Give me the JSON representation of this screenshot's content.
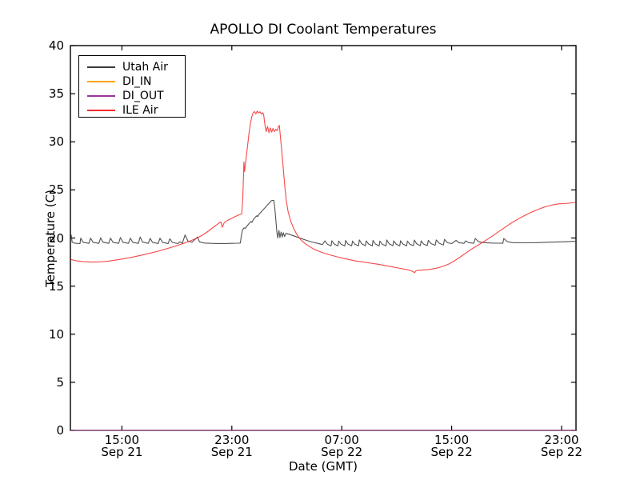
{
  "figure": {
    "background": "#ffffff",
    "spine_color": "#000000"
  },
  "chart_data": {
    "type": "line",
    "title": "APOLLO DI Coolant Temperatures",
    "xlabel": "Date (GMT)",
    "ylabel": "Temperature (C)",
    "x_unit": "hours since Sep 21 00:00 GMT",
    "xlim": [
      11.25,
      48.05
    ],
    "ylim": [
      0,
      40
    ],
    "grid": false,
    "y_ticks": [
      0,
      5,
      10,
      15,
      20,
      25,
      30,
      35,
      40
    ],
    "x_ticks": [
      {
        "t": 15,
        "time": "15:00",
        "date": "Sep 21"
      },
      {
        "t": 23,
        "time": "23:00",
        "date": "Sep 21"
      },
      {
        "t": 31,
        "time": "07:00",
        "date": "Sep 22"
      },
      {
        "t": 39,
        "time": "15:00",
        "date": "Sep 22"
      },
      {
        "t": 47,
        "time": "23:00",
        "date": "Sep 22"
      }
    ],
    "legend": {
      "position": "upper-left",
      "entries": [
        "Utah Air",
        "DI_IN",
        "DI_OUT",
        "ILE Air"
      ]
    },
    "series": [
      {
        "name": "Utah Air",
        "color": "#3a3a3a",
        "points": [
          [
            11.31,
            20.35
          ],
          [
            11.38,
            19.55
          ],
          [
            11.6,
            19.45
          ],
          [
            11.95,
            19.42
          ],
          [
            12.0,
            19.98
          ],
          [
            12.18,
            19.55
          ],
          [
            12.6,
            19.44
          ],
          [
            12.72,
            19.98
          ],
          [
            12.9,
            19.55
          ],
          [
            13.32,
            19.44
          ],
          [
            13.45,
            20.02
          ],
          [
            13.62,
            19.56
          ],
          [
            14.04,
            19.44
          ],
          [
            14.17,
            19.98
          ],
          [
            14.35,
            19.55
          ],
          [
            14.76,
            19.44
          ],
          [
            14.89,
            20.05
          ],
          [
            15.07,
            19.56
          ],
          [
            15.48,
            19.44
          ],
          [
            15.61,
            19.98
          ],
          [
            15.79,
            19.55
          ],
          [
            16.2,
            19.44
          ],
          [
            16.33,
            20.1
          ],
          [
            16.51,
            19.57
          ],
          [
            16.92,
            19.44
          ],
          [
            17.05,
            19.97
          ],
          [
            17.23,
            19.55
          ],
          [
            17.64,
            19.43
          ],
          [
            17.77,
            19.98
          ],
          [
            17.95,
            19.55
          ],
          [
            18.36,
            19.43
          ],
          [
            18.49,
            19.92
          ],
          [
            18.67,
            19.54
          ],
          [
            19.08,
            19.42
          ],
          [
            19.21,
            19.6
          ],
          [
            19.4,
            19.48
          ],
          [
            19.6,
            20.32
          ],
          [
            19.8,
            19.7
          ],
          [
            20.1,
            19.55
          ],
          [
            20.5,
            20.1
          ],
          [
            20.65,
            19.6
          ],
          [
            21.0,
            19.48
          ],
          [
            21.5,
            19.44
          ],
          [
            22.0,
            19.43
          ],
          [
            22.5,
            19.43
          ],
          [
            23.0,
            19.44
          ],
          [
            23.4,
            19.46
          ],
          [
            23.62,
            19.48
          ],
          [
            23.7,
            20.3
          ],
          [
            23.78,
            20.85
          ],
          [
            23.88,
            21.05
          ],
          [
            23.98,
            21.0
          ],
          [
            24.1,
            21.25
          ],
          [
            24.25,
            21.5
          ],
          [
            24.4,
            21.72
          ],
          [
            24.46,
            21.62
          ],
          [
            24.58,
            21.95
          ],
          [
            24.72,
            22.18
          ],
          [
            24.82,
            22.32
          ],
          [
            24.88,
            22.22
          ],
          [
            25.0,
            22.5
          ],
          [
            25.15,
            22.74
          ],
          [
            25.3,
            22.98
          ],
          [
            25.45,
            23.2
          ],
          [
            25.6,
            23.44
          ],
          [
            25.75,
            23.66
          ],
          [
            25.86,
            23.86
          ],
          [
            25.95,
            23.92
          ],
          [
            26.06,
            23.9
          ],
          [
            26.12,
            23.2
          ],
          [
            26.2,
            21.9
          ],
          [
            26.28,
            20.6
          ],
          [
            26.34,
            20.0
          ],
          [
            26.43,
            20.78
          ],
          [
            26.5,
            20.05
          ],
          [
            26.59,
            20.62
          ],
          [
            26.66,
            20.1
          ],
          [
            26.75,
            20.55
          ],
          [
            26.84,
            20.15
          ],
          [
            26.94,
            20.48
          ],
          [
            27.25,
            20.35
          ],
          [
            27.65,
            20.15
          ],
          [
            28.05,
            19.95
          ],
          [
            28.45,
            19.75
          ],
          [
            28.85,
            19.58
          ],
          [
            29.25,
            19.44
          ],
          [
            29.6,
            19.32
          ],
          [
            29.78,
            19.7
          ],
          [
            29.95,
            19.35
          ],
          [
            30.22,
            19.18
          ],
          [
            30.28,
            19.72
          ],
          [
            30.45,
            19.38
          ],
          [
            30.72,
            19.18
          ],
          [
            30.78,
            19.68
          ],
          [
            30.95,
            19.36
          ],
          [
            31.22,
            19.18
          ],
          [
            31.28,
            19.74
          ],
          [
            31.45,
            19.38
          ],
          [
            31.72,
            19.18
          ],
          [
            31.78,
            19.68
          ],
          [
            31.95,
            19.36
          ],
          [
            32.22,
            19.18
          ],
          [
            32.28,
            19.8
          ],
          [
            32.45,
            19.4
          ],
          [
            32.72,
            19.2
          ],
          [
            32.78,
            19.7
          ],
          [
            32.95,
            19.38
          ],
          [
            33.22,
            19.18
          ],
          [
            33.28,
            19.74
          ],
          [
            33.45,
            19.38
          ],
          [
            33.72,
            19.18
          ],
          [
            33.78,
            19.68
          ],
          [
            33.95,
            19.36
          ],
          [
            34.22,
            19.18
          ],
          [
            34.28,
            19.8
          ],
          [
            34.45,
            19.4
          ],
          [
            34.72,
            19.2
          ],
          [
            34.78,
            19.7
          ],
          [
            34.95,
            19.38
          ],
          [
            35.22,
            19.18
          ],
          [
            35.28,
            19.72
          ],
          [
            35.45,
            19.38
          ],
          [
            35.72,
            19.18
          ],
          [
            35.78,
            19.68
          ],
          [
            35.95,
            19.36
          ],
          [
            36.22,
            19.2
          ],
          [
            36.28,
            19.78
          ],
          [
            36.45,
            19.4
          ],
          [
            36.72,
            19.2
          ],
          [
            36.78,
            19.7
          ],
          [
            36.95,
            19.38
          ],
          [
            37.22,
            19.2
          ],
          [
            37.3,
            19.76
          ],
          [
            37.5,
            19.42
          ],
          [
            37.8,
            19.24
          ],
          [
            37.88,
            19.8
          ],
          [
            38.1,
            19.45
          ],
          [
            38.4,
            19.28
          ],
          [
            38.48,
            19.86
          ],
          [
            38.7,
            19.5
          ],
          [
            39.0,
            19.42
          ],
          [
            39.32,
            19.76
          ],
          [
            39.52,
            19.52
          ],
          [
            39.9,
            19.44
          ],
          [
            40.02,
            19.7
          ],
          [
            40.25,
            19.52
          ],
          [
            40.6,
            19.45
          ],
          [
            40.72,
            19.96
          ],
          [
            40.95,
            19.62
          ],
          [
            41.35,
            19.52
          ],
          [
            41.9,
            19.48
          ],
          [
            42.45,
            19.46
          ],
          [
            42.72,
            19.45
          ],
          [
            42.8,
            19.95
          ],
          [
            43.05,
            19.62
          ],
          [
            43.45,
            19.52
          ],
          [
            44.0,
            19.5
          ],
          [
            44.6,
            19.5
          ],
          [
            45.2,
            19.52
          ],
          [
            45.8,
            19.55
          ],
          [
            46.4,
            19.58
          ],
          [
            47.0,
            19.6
          ],
          [
            47.6,
            19.63
          ],
          [
            48.0,
            19.66
          ]
        ]
      },
      {
        "name": "DI_IN",
        "color": "#ffa500",
        "points": [
          [
            11.25,
            0
          ],
          [
            48.05,
            0
          ]
        ]
      },
      {
        "name": "DI_OUT",
        "color": "#993399",
        "points": [
          [
            11.25,
            0
          ],
          [
            48.05,
            0
          ]
        ]
      },
      {
        "name": "ILE Air",
        "color": "#f62d2d",
        "points": [
          [
            11.26,
            17.78
          ],
          [
            11.7,
            17.62
          ],
          [
            12.2,
            17.54
          ],
          [
            12.8,
            17.5
          ],
          [
            13.4,
            17.52
          ],
          [
            14.0,
            17.6
          ],
          [
            14.6,
            17.72
          ],
          [
            15.2,
            17.86
          ],
          [
            15.8,
            18.02
          ],
          [
            16.4,
            18.2
          ],
          [
            17.0,
            18.4
          ],
          [
            17.6,
            18.62
          ],
          [
            18.2,
            18.86
          ],
          [
            18.8,
            19.12
          ],
          [
            19.4,
            19.4
          ],
          [
            19.9,
            19.66
          ],
          [
            20.4,
            19.95
          ],
          [
            20.8,
            20.25
          ],
          [
            21.2,
            20.62
          ],
          [
            21.55,
            21.0
          ],
          [
            21.9,
            21.38
          ],
          [
            22.1,
            21.58
          ],
          [
            22.2,
            21.66
          ],
          [
            22.3,
            21.12
          ],
          [
            22.45,
            21.6
          ],
          [
            22.7,
            21.84
          ],
          [
            23.0,
            22.06
          ],
          [
            23.3,
            22.26
          ],
          [
            23.55,
            22.42
          ],
          [
            23.72,
            22.52
          ],
          [
            23.8,
            24.2
          ],
          [
            23.84,
            26.0
          ],
          [
            23.88,
            27.9
          ],
          [
            23.93,
            26.9
          ],
          [
            23.98,
            27.6
          ],
          [
            24.05,
            28.4
          ],
          [
            24.15,
            29.6
          ],
          [
            24.25,
            30.9
          ],
          [
            24.35,
            31.9
          ],
          [
            24.45,
            32.6
          ],
          [
            24.55,
            33.0
          ],
          [
            24.65,
            33.15
          ],
          [
            24.75,
            32.9
          ],
          [
            24.85,
            33.2
          ],
          [
            24.95,
            33.0
          ],
          [
            25.05,
            33.12
          ],
          [
            25.15,
            32.88
          ],
          [
            25.25,
            33.02
          ],
          [
            25.32,
            32.8
          ],
          [
            25.42,
            31.6
          ],
          [
            25.5,
            31.05
          ],
          [
            25.6,
            31.6
          ],
          [
            25.7,
            30.95
          ],
          [
            25.8,
            31.45
          ],
          [
            25.9,
            31.0
          ],
          [
            26.0,
            31.4
          ],
          [
            26.1,
            31.05
          ],
          [
            26.2,
            31.3
          ],
          [
            26.3,
            31.15
          ],
          [
            26.4,
            31.6
          ],
          [
            26.46,
            31.7
          ],
          [
            26.56,
            30.2
          ],
          [
            26.66,
            28.6
          ],
          [
            26.76,
            26.9
          ],
          [
            26.86,
            25.3
          ],
          [
            26.96,
            23.9
          ],
          [
            27.1,
            22.7
          ],
          [
            27.3,
            21.7
          ],
          [
            27.5,
            21.0
          ],
          [
            27.7,
            20.45
          ],
          [
            27.9,
            20.02
          ],
          [
            28.1,
            19.7
          ],
          [
            28.35,
            19.4
          ],
          [
            28.6,
            19.15
          ],
          [
            28.9,
            18.9
          ],
          [
            29.2,
            18.7
          ],
          [
            29.55,
            18.5
          ],
          [
            29.9,
            18.34
          ],
          [
            30.3,
            18.18
          ],
          [
            30.7,
            18.04
          ],
          [
            31.1,
            17.9
          ],
          [
            31.6,
            17.74
          ],
          [
            32.1,
            17.6
          ],
          [
            32.6,
            17.5
          ],
          [
            33.1,
            17.38
          ],
          [
            33.6,
            17.28
          ],
          [
            34.1,
            17.16
          ],
          [
            34.6,
            17.02
          ],
          [
            35.1,
            16.88
          ],
          [
            35.5,
            16.78
          ],
          [
            35.8,
            16.7
          ],
          [
            36.0,
            16.62
          ],
          [
            36.2,
            16.5
          ],
          [
            36.3,
            16.38
          ],
          [
            36.4,
            16.58
          ],
          [
            36.55,
            16.64
          ],
          [
            36.8,
            16.66
          ],
          [
            37.2,
            16.7
          ],
          [
            37.6,
            16.78
          ],
          [
            38.0,
            16.9
          ],
          [
            38.4,
            17.08
          ],
          [
            38.8,
            17.3
          ],
          [
            39.2,
            17.62
          ],
          [
            39.6,
            18.0
          ],
          [
            40.0,
            18.4
          ],
          [
            40.4,
            18.8
          ],
          [
            40.8,
            19.16
          ],
          [
            41.2,
            19.5
          ],
          [
            41.6,
            19.86
          ],
          [
            42.0,
            20.24
          ],
          [
            42.4,
            20.64
          ],
          [
            42.8,
            21.02
          ],
          [
            43.2,
            21.42
          ],
          [
            43.6,
            21.78
          ],
          [
            44.0,
            22.1
          ],
          [
            44.4,
            22.4
          ],
          [
            44.8,
            22.68
          ],
          [
            45.2,
            22.92
          ],
          [
            45.6,
            23.14
          ],
          [
            46.0,
            23.32
          ],
          [
            46.4,
            23.46
          ],
          [
            46.8,
            23.55
          ],
          [
            47.2,
            23.58
          ],
          [
            47.5,
            23.62
          ],
          [
            47.8,
            23.66
          ],
          [
            48.0,
            23.7
          ]
        ]
      }
    ]
  }
}
